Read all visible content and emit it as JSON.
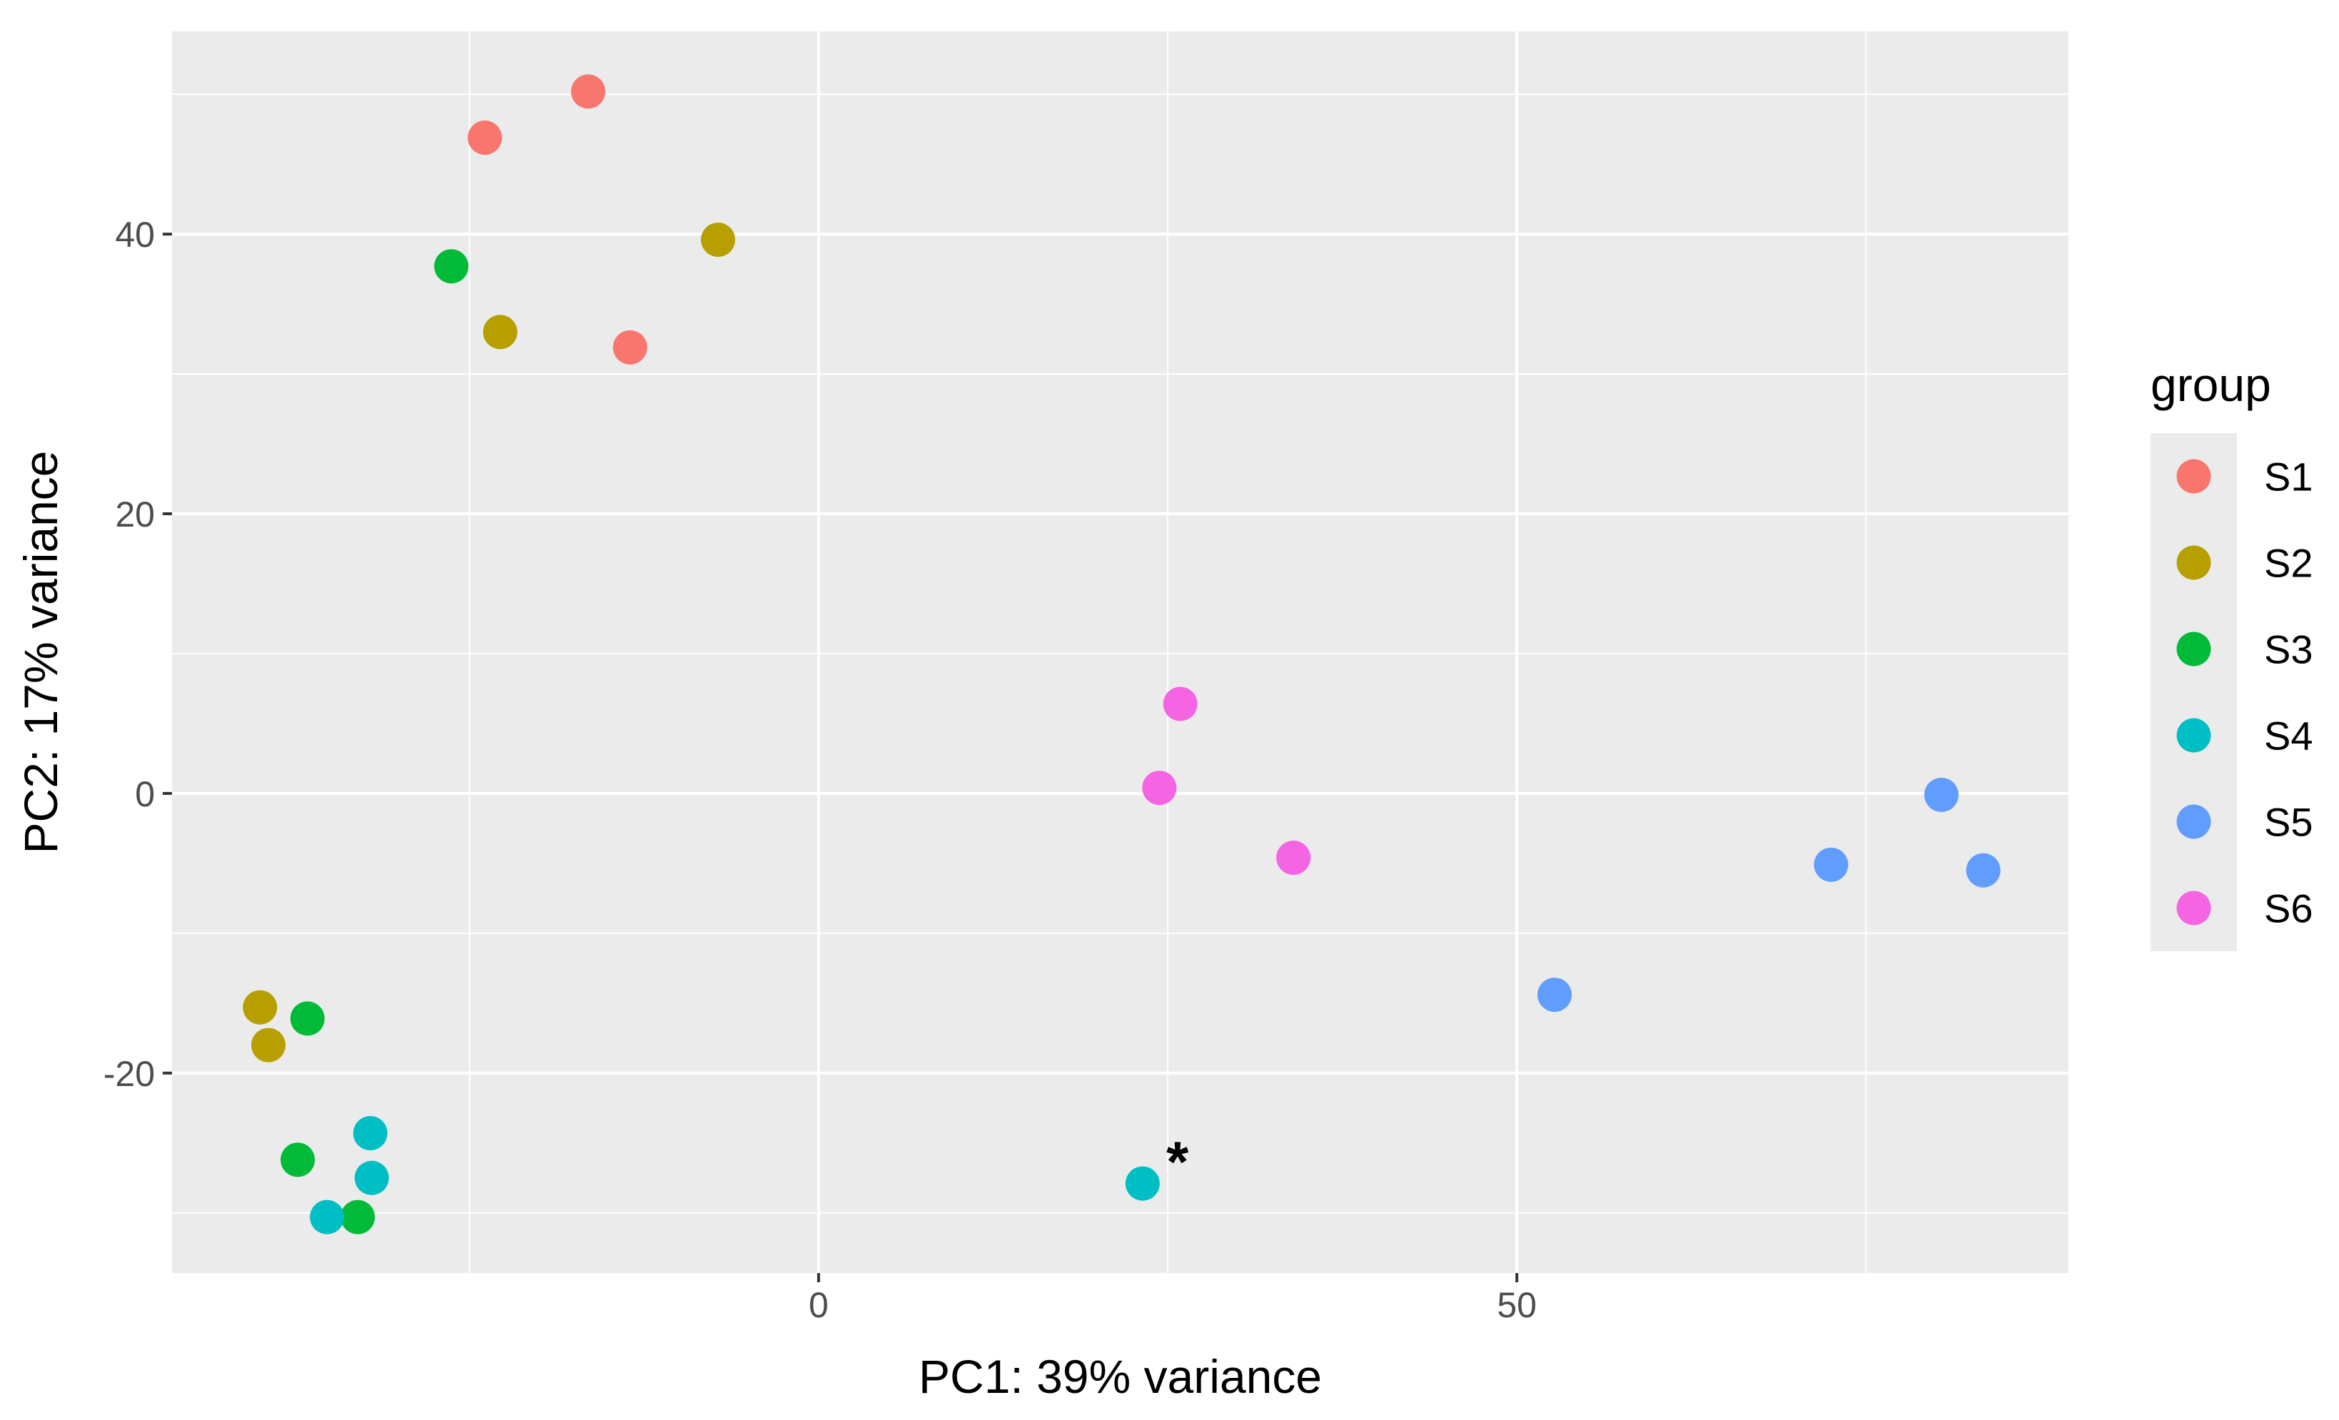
{
  "chart_data": {
    "type": "scatter",
    "title": "",
    "xlabel": "PC1: 39% variance",
    "ylabel": "PC2: 17% variance",
    "xlim": [
      -46.3,
      89.5
    ],
    "ylim": [
      -34.3,
      54.5
    ],
    "x_major_ticks": [
      0,
      50
    ],
    "x_tick_labels": [
      "0",
      "50"
    ],
    "x_minor_ticks": [
      -25,
      25,
      75
    ],
    "y_major_ticks": [
      -20,
      0,
      20,
      40
    ],
    "y_tick_labels": [
      "-20",
      "0",
      "20",
      "40"
    ],
    "y_minor_ticks": [
      -30,
      -10,
      10,
      30,
      50
    ],
    "grid": true,
    "legend": {
      "title": "group",
      "position": "right"
    },
    "series": [
      {
        "name": "S1",
        "color": "#F8766D",
        "points": [
          [
            -16.5,
            50.2
          ],
          [
            -23.9,
            46.9
          ],
          [
            -13.5,
            31.9
          ]
        ]
      },
      {
        "name": "S2",
        "color": "#B79F00",
        "points": [
          [
            -7.2,
            39.6
          ],
          [
            -22.8,
            33.0
          ],
          [
            -40.0,
            -15.3
          ],
          [
            -39.4,
            -18.0
          ]
        ]
      },
      {
        "name": "S3",
        "color": "#00BA38",
        "points": [
          [
            -26.3,
            37.7
          ],
          [
            -36.6,
            -16.1
          ],
          [
            -37.3,
            -26.2
          ],
          [
            -33.0,
            -30.3
          ]
        ]
      },
      {
        "name": "S4",
        "color": "#00BFC4",
        "points": [
          [
            -32.1,
            -24.3
          ],
          [
            -32.0,
            -27.5
          ],
          [
            -35.2,
            -30.3
          ],
          [
            23.2,
            -27.9
          ]
        ]
      },
      {
        "name": "S5",
        "color": "#619CFF",
        "points": [
          [
            80.4,
            -0.1
          ],
          [
            72.5,
            -5.1
          ],
          [
            83.4,
            -5.5
          ],
          [
            52.7,
            -14.4
          ]
        ]
      },
      {
        "name": "S6",
        "color": "#F564E3",
        "points": [
          [
            25.9,
            6.4
          ],
          [
            24.4,
            0.4
          ],
          [
            34.0,
            -4.6
          ]
        ]
      }
    ],
    "annotations": [
      {
        "text": "*",
        "x": 25.7,
        "y": -26.2
      }
    ]
  }
}
